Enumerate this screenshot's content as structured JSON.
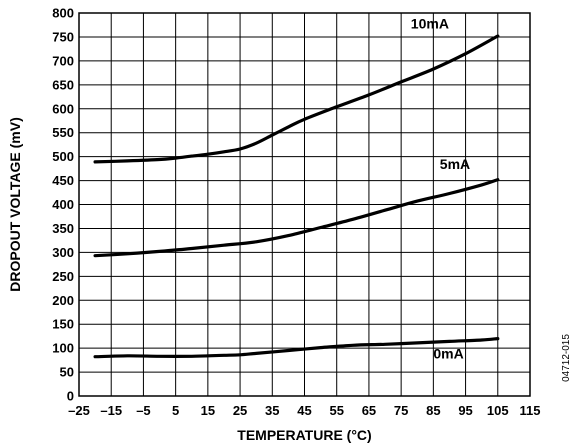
{
  "chart_data": {
    "type": "line",
    "xlabel": "TEMPERATURE (°C)",
    "ylabel": "DROPOUT VOLTAGE (mV)",
    "xlim": [
      -25,
      115
    ],
    "ylim": [
      0,
      800
    ],
    "x_ticks": [
      "–25",
      "–15",
      "–5",
      "5",
      "15",
      "25",
      "35",
      "45",
      "55",
      "65",
      "75",
      "85",
      "95",
      "105",
      "115"
    ],
    "x_tick_values": [
      -25,
      -15,
      -5,
      5,
      15,
      25,
      35,
      45,
      55,
      65,
      75,
      85,
      95,
      105,
      115
    ],
    "y_ticks": [
      "0",
      "50",
      "100",
      "150",
      "200",
      "250",
      "300",
      "350",
      "400",
      "450",
      "500",
      "550",
      "600",
      "650",
      "700",
      "750",
      "800"
    ],
    "y_tick_values": [
      0,
      50,
      100,
      150,
      200,
      250,
      300,
      350,
      400,
      450,
      500,
      550,
      600,
      650,
      700,
      750,
      800
    ],
    "grid": true,
    "series": [
      {
        "name": "10mA",
        "label_at": [
          78,
          768
        ],
        "x": [
          -20,
          -10,
          0,
          5,
          10,
          15,
          20,
          25,
          30,
          35,
          40,
          45,
          55,
          65,
          75,
          85,
          95,
          105
        ],
        "y": [
          489,
          491,
          494,
          497,
          501,
          505,
          510,
          516,
          528,
          545,
          562,
          578,
          604,
          629,
          656,
          683,
          715,
          752
        ]
      },
      {
        "name": "5mA",
        "label_at": [
          87,
          474
        ],
        "x": [
          -20,
          -10,
          0,
          10,
          20,
          30,
          40,
          50,
          60,
          70,
          80,
          90,
          100,
          105
        ],
        "y": [
          293,
          297,
          302,
          308,
          315,
          322,
          335,
          352,
          369,
          388,
          407,
          423,
          441,
          452
        ]
      },
      {
        "name": "0mA",
        "label_at": [
          85,
          78
        ],
        "x": [
          -20,
          -10,
          0,
          10,
          20,
          25,
          30,
          40,
          50,
          60,
          70,
          80,
          90,
          100,
          105
        ],
        "y": [
          82,
          84,
          83,
          83,
          85,
          86,
          89,
          95,
          101,
          106,
          108,
          111,
          114,
          117,
          120
        ]
      }
    ],
    "figure_id": "04712-015"
  }
}
